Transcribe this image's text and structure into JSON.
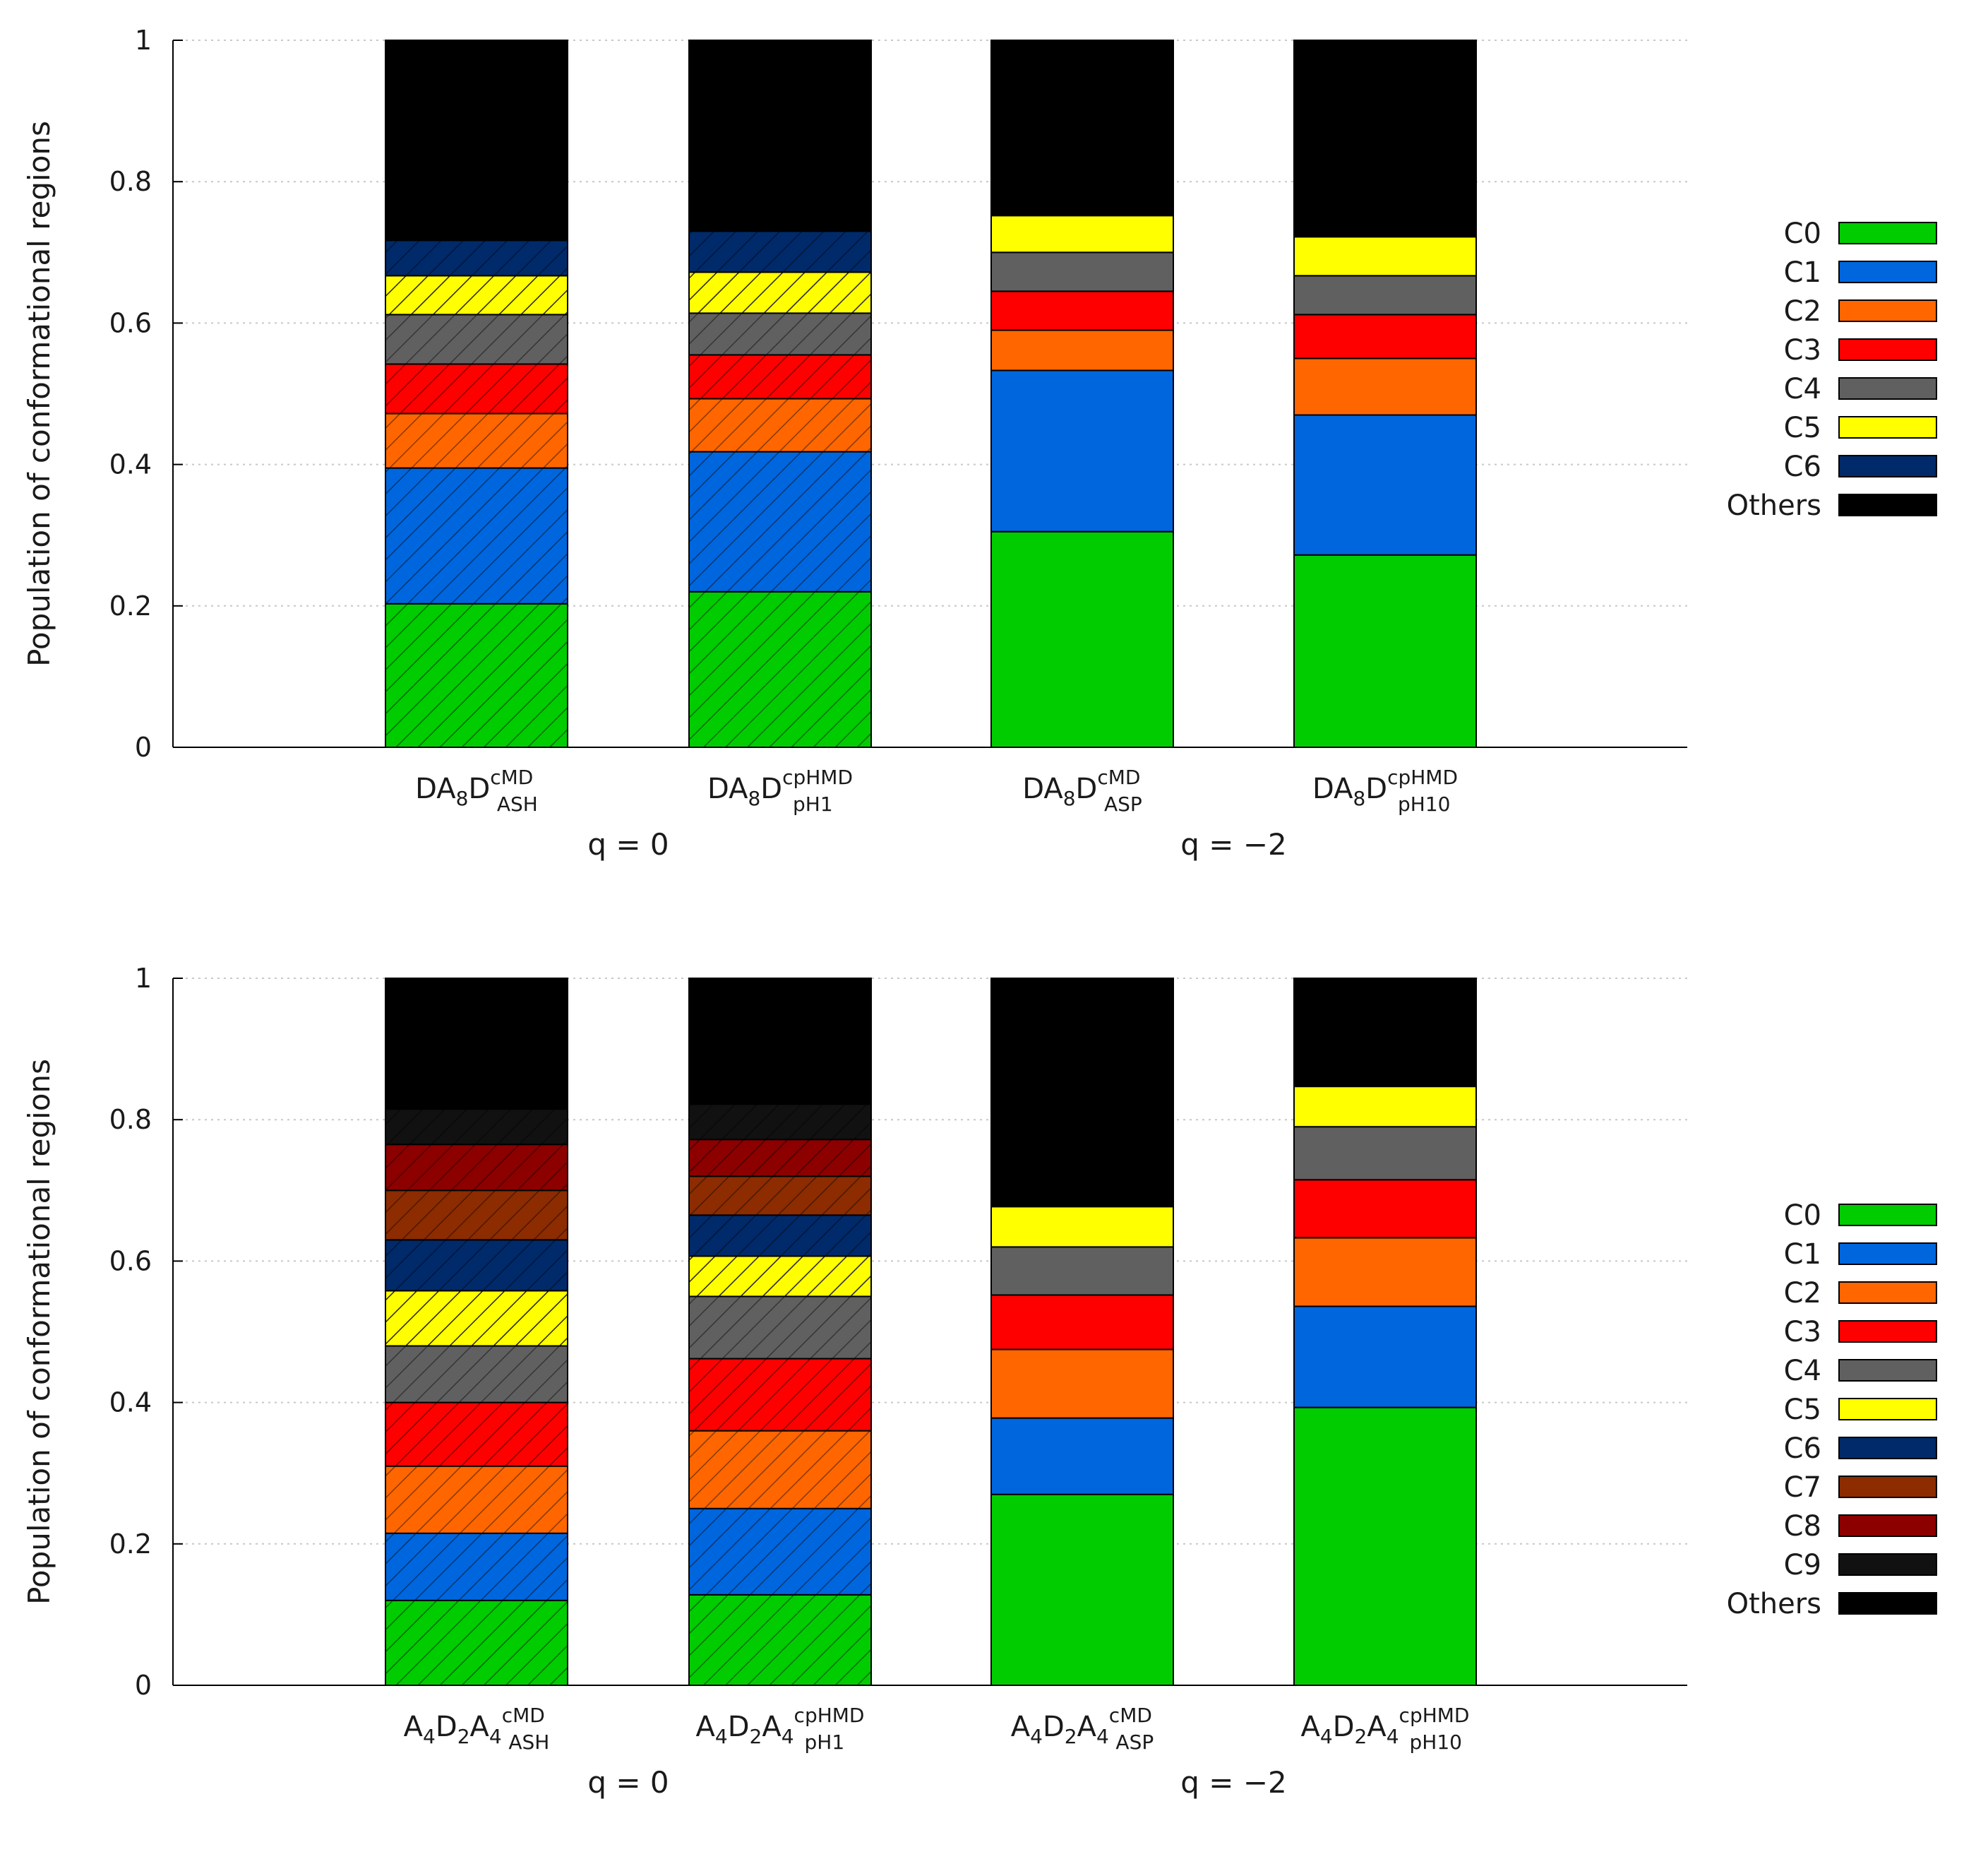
{
  "legend_colors": {
    "C0": "#00cc00",
    "C1": "#0066dd",
    "C2": "#ff6600",
    "C3": "#ff0000",
    "C4": "#606060",
    "C5": "#ffff00",
    "C6": "#002a6a",
    "C7": "#8c2c00",
    "C8": "#8c0000",
    "C9": "#111111",
    "Others": "#000000"
  },
  "chart_data": [
    {
      "type": "bar",
      "stacked": true,
      "title": "",
      "xlabel": "",
      "ylabel": "Population of conformational regions",
      "ylim": [
        0,
        1
      ],
      "yticks": [
        "0",
        "0.2",
        "0.4",
        "0.6",
        "0.8",
        "1"
      ],
      "grid": "horizontal dotted",
      "legend_position": "right",
      "categories": [
        {
          "base": "DA",
          "sub1": "8",
          "mid": "D",
          "sup": "cMD",
          "sub": "ASH",
          "hatched": true
        },
        {
          "base": "DA",
          "sub1": "8",
          "mid": "D",
          "sup": "cpHMD",
          "sub": "pH1",
          "hatched": true
        },
        {
          "base": "DA",
          "sub1": "8",
          "mid": "D",
          "sup": "cMD",
          "sub": "ASP",
          "hatched": false
        },
        {
          "base": "DA",
          "sub1": "8",
          "mid": "D",
          "sup": "cpHMD",
          "sub": "pH10",
          "hatched": false
        }
      ],
      "groups": [
        {
          "label": "q = 0",
          "categories": [
            0,
            1
          ]
        },
        {
          "label": "q = −2",
          "categories": [
            2,
            3
          ]
        }
      ],
      "series": [
        {
          "name": "C0",
          "values": [
            0.203,
            0.22,
            0.305,
            0.272
          ]
        },
        {
          "name": "C1",
          "values": [
            0.192,
            0.198,
            0.228,
            0.198
          ]
        },
        {
          "name": "C2",
          "values": [
            0.077,
            0.075,
            0.057,
            0.08
          ]
        },
        {
          "name": "C3",
          "values": [
            0.07,
            0.062,
            0.055,
            0.062
          ]
        },
        {
          "name": "C4",
          "values": [
            0.07,
            0.059,
            0.055,
            0.055
          ]
        },
        {
          "name": "C5",
          "values": [
            0.055,
            0.058,
            0.052,
            0.055
          ]
        },
        {
          "name": "C6",
          "values": [
            0.05,
            0.058,
            0.0,
            0.0
          ]
        },
        {
          "name": "Others",
          "values": [
            0.283,
            0.27,
            0.248,
            0.278
          ]
        }
      ],
      "legend": [
        "C0",
        "C1",
        "C2",
        "C3",
        "C4",
        "C5",
        "C6",
        "Others"
      ]
    },
    {
      "type": "bar",
      "stacked": true,
      "title": "",
      "xlabel": "",
      "ylabel": "Population of conformational regions",
      "ylim": [
        0,
        1
      ],
      "yticks": [
        "0",
        "0.2",
        "0.4",
        "0.6",
        "0.8",
        "1"
      ],
      "grid": "horizontal dotted",
      "legend_position": "right",
      "categories": [
        {
          "base": "A",
          "sub1": "4",
          "mid": "D",
          "sub2": "2",
          "tail": "A",
          "sub3": "4",
          "sup": "cMD",
          "sub": "ASH",
          "hatched": true
        },
        {
          "base": "A",
          "sub1": "4",
          "mid": "D",
          "sub2": "2",
          "tail": "A",
          "sub3": "4",
          "sup": "cpHMD",
          "sub": "pH1",
          "hatched": true
        },
        {
          "base": "A",
          "sub1": "4",
          "mid": "D",
          "sub2": "2",
          "tail": "A",
          "sub3": "4",
          "sup": "cMD",
          "sub": "ASP",
          "hatched": false
        },
        {
          "base": "A",
          "sub1": "4",
          "mid": "D",
          "sub2": "2",
          "tail": "A",
          "sub3": "4",
          "sup": "cpHMD",
          "sub": "pH10",
          "hatched": false
        }
      ],
      "groups": [
        {
          "label": "q = 0",
          "categories": [
            0,
            1
          ]
        },
        {
          "label": "q = −2",
          "categories": [
            2,
            3
          ]
        }
      ],
      "series": [
        {
          "name": "C0",
          "values": [
            0.12,
            0.128,
            0.27,
            0.393
          ]
        },
        {
          "name": "C1",
          "values": [
            0.095,
            0.122,
            0.108,
            0.143
          ]
        },
        {
          "name": "C2",
          "values": [
            0.095,
            0.11,
            0.097,
            0.097
          ]
        },
        {
          "name": "C3",
          "values": [
            0.09,
            0.102,
            0.077,
            0.082
          ]
        },
        {
          "name": "C4",
          "values": [
            0.08,
            0.088,
            0.068,
            0.075
          ]
        },
        {
          "name": "C5",
          "values": [
            0.078,
            0.057,
            0.057,
            0.057
          ]
        },
        {
          "name": "C6",
          "values": [
            0.072,
            0.058,
            0.0,
            0.0
          ]
        },
        {
          "name": "C7",
          "values": [
            0.07,
            0.055,
            0.0,
            0.0
          ]
        },
        {
          "name": "C8",
          "values": [
            0.065,
            0.052,
            0.0,
            0.0
          ]
        },
        {
          "name": "C9",
          "values": [
            0.05,
            0.05,
            0.0,
            0.0
          ]
        },
        {
          "name": "Others",
          "values": [
            0.185,
            0.178,
            0.323,
            0.153
          ]
        }
      ],
      "legend": [
        "C0",
        "C1",
        "C2",
        "C3",
        "C4",
        "C5",
        "C6",
        "C7",
        "C8",
        "C9",
        "Others"
      ]
    }
  ]
}
